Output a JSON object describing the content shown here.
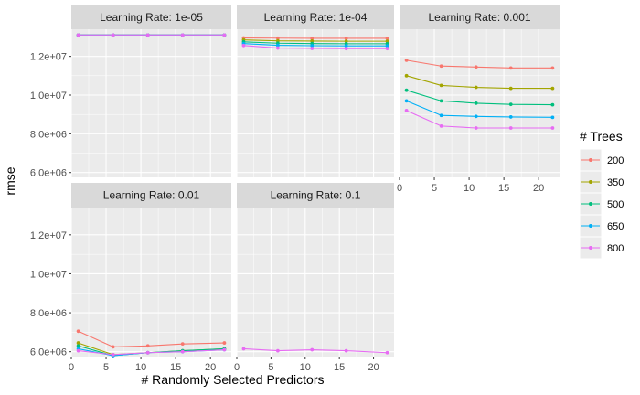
{
  "chart_data": {
    "type": "line",
    "xlabel": "# Randomly Selected Predictors",
    "ylabel": "rmse",
    "x_ticks": [
      0,
      5,
      10,
      15,
      20
    ],
    "y_ticks": [
      6000000,
      8000000,
      10000000,
      12000000
    ],
    "y_tick_labels": [
      "6.0e+06",
      "8.0e+06",
      "1.0e+07",
      "1.2e+07"
    ],
    "xlim": [
      0,
      23
    ],
    "ylim": [
      5750000,
      13400000
    ],
    "grid": true,
    "legend": {
      "title": "# Trees",
      "position": "right",
      "entries": [
        "200",
        "350",
        "500",
        "650",
        "800"
      ]
    },
    "colors": {
      "200": "#F8766D",
      "350": "#A3A500",
      "500": "#00BF7D",
      "650": "#00B0F6",
      "800": "#E76BF3"
    },
    "x": [
      1,
      6,
      11,
      16,
      22
    ],
    "panels": [
      {
        "strip": "Learning Rate: 1e-05",
        "series": [
          {
            "name": "200",
            "values": [
              13100000,
              13100000,
              13100000,
              13100000,
              13100000
            ]
          },
          {
            "name": "350",
            "values": [
              13100000,
              13100000,
              13100000,
              13100000,
              13100000
            ]
          },
          {
            "name": "500",
            "values": [
              13100000,
              13100000,
              13100000,
              13100000,
              13100000
            ]
          },
          {
            "name": "650",
            "values": [
              13100000,
              13100000,
              13100000,
              13100000,
              13100000
            ]
          },
          {
            "name": "800",
            "values": [
              13100000,
              13100000,
              13100000,
              13100000,
              13100000
            ]
          }
        ]
      },
      {
        "strip": "Learning Rate: 1e-04",
        "series": [
          {
            "name": "200",
            "values": [
              12950000,
              12940000,
              12930000,
              12930000,
              12930000
            ]
          },
          {
            "name": "350",
            "values": [
              12850000,
              12800000,
              12790000,
              12780000,
              12780000
            ]
          },
          {
            "name": "500",
            "values": [
              12750000,
              12680000,
              12660000,
              12650000,
              12650000
            ]
          },
          {
            "name": "650",
            "values": [
              12660000,
              12570000,
              12550000,
              12540000,
              12540000
            ]
          },
          {
            "name": "800",
            "values": [
              12560000,
              12430000,
              12410000,
              12400000,
              12400000
            ]
          }
        ]
      },
      {
        "strip": "Learning Rate: 0.001",
        "series": [
          {
            "name": "200",
            "values": [
              11800000,
              11500000,
              11450000,
              11400000,
              11400000
            ]
          },
          {
            "name": "350",
            "values": [
              11000000,
              10500000,
              10400000,
              10350000,
              10350000
            ]
          },
          {
            "name": "500",
            "values": [
              10250000,
              9700000,
              9580000,
              9520000,
              9500000
            ]
          },
          {
            "name": "650",
            "values": [
              9700000,
              8950000,
              8900000,
              8870000,
              8850000
            ]
          },
          {
            "name": "800",
            "values": [
              9200000,
              8400000,
              8300000,
              8300000,
              8300000
            ]
          }
        ]
      },
      {
        "strip": "Learning Rate: 0.01",
        "series": [
          {
            "name": "200",
            "values": [
              7050000,
              6250000,
              6300000,
              6400000,
              6450000
            ]
          },
          {
            "name": "350",
            "values": [
              6450000,
              5850000,
              5950000,
              6050000,
              6150000
            ]
          },
          {
            "name": "500",
            "values": [
              6300000,
              5800000,
              5950000,
              6050000,
              6150000
            ]
          },
          {
            "name": "650",
            "values": [
              6150000,
              5800000,
              5950000,
              6000000,
              6100000
            ]
          },
          {
            "name": "800",
            "values": [
              6050000,
              5850000,
              5950000,
              6000000,
              6100000
            ]
          }
        ]
      },
      {
        "strip": "Learning Rate: 0.1",
        "series": [
          {
            "name": "800",
            "values": [
              6150000,
              6050000,
              6100000,
              6050000,
              5950000
            ]
          }
        ]
      }
    ]
  }
}
